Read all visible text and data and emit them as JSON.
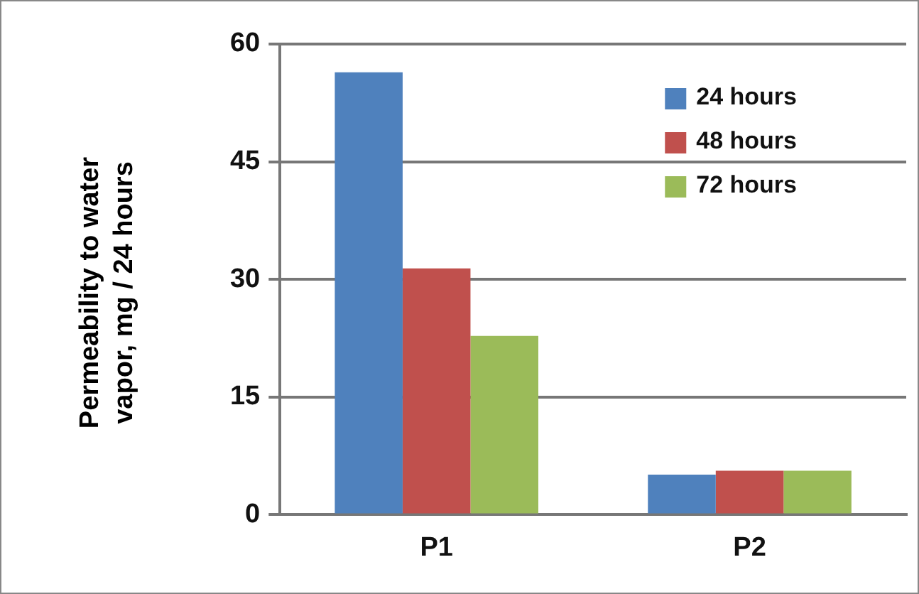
{
  "chart_data": {
    "type": "bar",
    "ylabel": "Permeability to water vapor, mg / 24 hours",
    "categories": [
      "P1",
      "P2"
    ],
    "series": [
      {
        "name": "24 hours",
        "color": "#4f81bd",
        "values": [
          56.4,
          5.1
        ]
      },
      {
        "name": "48 hours",
        "color": "#c0504d",
        "values": [
          31.4,
          5.6
        ]
      },
      {
        "name": "72 hours",
        "color": "#9bbb59",
        "values": [
          22.8,
          5.6
        ]
      }
    ],
    "ylim": [
      0,
      60
    ],
    "yticks": [
      0,
      15,
      30,
      45,
      60
    ],
    "grid": "y",
    "legend": "top right"
  }
}
